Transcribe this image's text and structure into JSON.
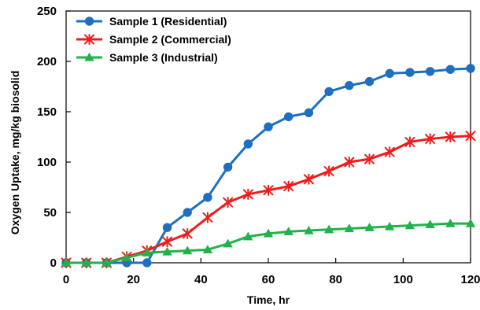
{
  "chart_data": {
    "type": "line",
    "title": "",
    "xlabel": "Time, hr",
    "ylabel": "Oxygen Uptake, mg/kg biosolid",
    "xlim": [
      0,
      120
    ],
    "ylim": [
      0,
      250
    ],
    "xticks": [
      0,
      20,
      40,
      60,
      80,
      100,
      120
    ],
    "yticks": [
      0,
      50,
      100,
      150,
      200,
      250
    ],
    "grid": false,
    "legend": "top-left",
    "series": [
      {
        "name": "Sample 1 (Residential)",
        "color": "#1f6fc0",
        "marker": "circle",
        "x": [
          0,
          6,
          12,
          18,
          24,
          30,
          36,
          42,
          48,
          54,
          60,
          66,
          72,
          78,
          84,
          90,
          96,
          102,
          108,
          114,
          120
        ],
        "y": [
          0,
          0,
          0,
          0,
          0,
          35,
          50,
          65,
          95,
          118,
          135,
          145,
          149,
          170,
          176,
          180,
          188,
          189,
          190,
          192,
          193
        ]
      },
      {
        "name": "Sample 2 (Commercial)",
        "color": "#ee1c1c",
        "marker": "star",
        "x": [
          0,
          6,
          12,
          18,
          24,
          30,
          36,
          42,
          48,
          54,
          60,
          66,
          72,
          78,
          84,
          90,
          96,
          102,
          108,
          114,
          120
        ],
        "y": [
          0,
          0,
          0,
          6,
          12,
          21,
          29,
          45,
          60,
          68,
          72,
          76,
          83,
          91,
          100,
          103,
          110,
          120,
          123,
          125,
          126
        ]
      },
      {
        "name": "Sample 3 (Industrial)",
        "color": "#22b24c",
        "marker": "triangle",
        "x": [
          0,
          6,
          12,
          18,
          24,
          30,
          36,
          42,
          48,
          54,
          60,
          66,
          72,
          78,
          84,
          90,
          96,
          102,
          108,
          114,
          120
        ],
        "y": [
          0,
          0,
          0,
          5,
          10,
          11,
          12,
          13,
          19,
          26,
          29,
          31,
          32,
          33,
          34,
          35,
          36,
          37,
          38,
          39,
          39
        ]
      }
    ]
  }
}
